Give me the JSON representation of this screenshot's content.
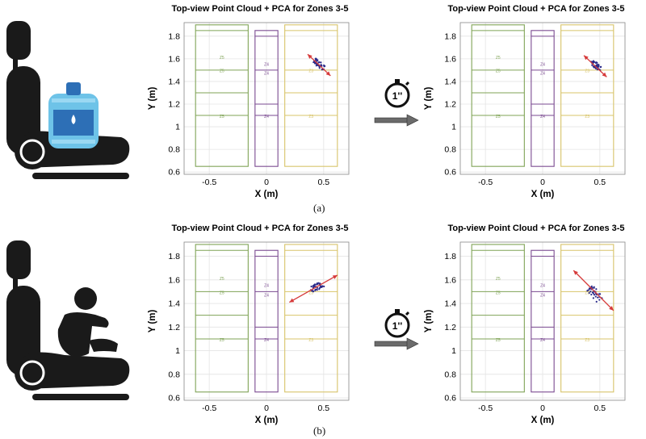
{
  "figure": {
    "caption_a": "(a)",
    "caption_b": "(b)",
    "timer_label": "1''"
  },
  "colors": {
    "zone5": "#7fa356",
    "zone4": "#7a4a91",
    "zone3": "#d8c46a",
    "points": "#2a2a8a",
    "pca_arrow": "#d63a3a",
    "seat": "#1a1a1a",
    "bottle": "#6ec3e8",
    "timer_arrow": "#6b6b6b"
  },
  "icons": {
    "seat_a": "car-seat-with-water-bottle-icon",
    "seat_b": "car-seat-with-child-icon",
    "timer": "stopwatch-icon"
  },
  "chart_data": [
    {
      "panel": "a-left",
      "type": "scatter",
      "title": "Top-view Point Cloud + PCA for Zones 3-5",
      "xlabel": "X (m)",
      "ylabel": "Y (m)",
      "xlim": [
        -0.72,
        0.72
      ],
      "ylim": [
        0.58,
        1.92
      ],
      "xticks": [
        -0.5,
        0,
        0.5
      ],
      "xtick_labels": [
        "-0.5",
        "0",
        "0.5"
      ],
      "yticks": [
        0.6,
        0.8,
        1.0,
        1.2,
        1.4,
        1.6,
        1.8
      ],
      "ytick_labels": [
        "0.6",
        "0.8",
        "1",
        "1.2",
        "1.4",
        "1.6",
        "1.8"
      ],
      "grid": true,
      "zones": [
        {
          "name": "Z5",
          "x": [
            -0.62,
            -0.16
          ],
          "y": [
            0.65,
            1.9
          ],
          "dividers": [
            1.85,
            1.5,
            1.3,
            1.1
          ],
          "labels": [
            {
              "text": "Z5",
              "x": -0.39,
              "y": 1.6
            },
            {
              "text": "Z5",
              "x": -0.39,
              "y": 1.48
            },
            {
              "text": "Z5",
              "x": -0.39,
              "y": 1.08
            }
          ]
        },
        {
          "name": "Z4",
          "x": [
            -0.1,
            0.1
          ],
          "y": [
            0.65,
            1.85
          ],
          "dividers": [
            1.8,
            1.5,
            1.2,
            1.1
          ],
          "labels": [
            {
              "text": "Z4",
              "x": 0.0,
              "y": 1.54
            },
            {
              "text": "Z4",
              "x": 0.0,
              "y": 1.46
            },
            {
              "text": "Z4",
              "x": 0.0,
              "y": 1.08
            }
          ]
        },
        {
          "name": "Z3",
          "x": [
            0.16,
            0.62
          ],
          "y": [
            0.65,
            1.9
          ],
          "dividers": [
            1.85,
            1.5,
            1.3,
            1.1
          ],
          "labels": [
            {
              "text": "Z3",
              "x": 0.39,
              "y": 1.48
            },
            {
              "text": "Z3",
              "x": 0.39,
              "y": 1.08
            }
          ]
        }
      ],
      "cluster": {
        "center": [
          0.46,
          1.55
        ],
        "angle": -40,
        "spread": [
          0.06,
          0.025
        ]
      },
      "pca_arrow": {
        "from": [
          0.36,
          1.64
        ],
        "to": [
          0.56,
          1.45
        ]
      }
    },
    {
      "panel": "a-right",
      "type": "scatter",
      "title": "Top-view Point Cloud + PCA for Zones 3-5",
      "xlabel": "X (m)",
      "ylabel": "Y (m)",
      "xlim": [
        -0.72,
        0.72
      ],
      "ylim": [
        0.58,
        1.92
      ],
      "xticks": [
        -0.5,
        0,
        0.5
      ],
      "xtick_labels": [
        "-0.5",
        "0",
        "0.5"
      ],
      "yticks": [
        0.6,
        0.8,
        1.0,
        1.2,
        1.4,
        1.6,
        1.8
      ],
      "ytick_labels": [
        "0.6",
        "0.8",
        "1",
        "1.2",
        "1.4",
        "1.6",
        "1.8"
      ],
      "grid": true,
      "zones": [
        {
          "name": "Z5",
          "x": [
            -0.62,
            -0.16
          ],
          "y": [
            0.65,
            1.9
          ],
          "dividers": [
            1.85,
            1.5,
            1.3,
            1.1
          ],
          "labels": [
            {
              "text": "Z5",
              "x": -0.39,
              "y": 1.6
            },
            {
              "text": "Z5",
              "x": -0.39,
              "y": 1.48
            },
            {
              "text": "Z5",
              "x": -0.39,
              "y": 1.08
            }
          ]
        },
        {
          "name": "Z4",
          "x": [
            -0.1,
            0.1
          ],
          "y": [
            0.65,
            1.85
          ],
          "dividers": [
            1.8,
            1.5,
            1.2,
            1.1
          ],
          "labels": [
            {
              "text": "Z4",
              "x": 0.0,
              "y": 1.54
            },
            {
              "text": "Z4",
              "x": 0.0,
              "y": 1.46
            },
            {
              "text": "Z4",
              "x": 0.0,
              "y": 1.08
            }
          ]
        },
        {
          "name": "Z3",
          "x": [
            0.16,
            0.62
          ],
          "y": [
            0.65,
            1.9
          ],
          "dividers": [
            1.85,
            1.5,
            1.3,
            1.1
          ],
          "labels": [
            {
              "text": "Z3",
              "x": 0.39,
              "y": 1.48
            },
            {
              "text": "Z3",
              "x": 0.39,
              "y": 1.08
            }
          ]
        }
      ],
      "cluster": {
        "center": [
          0.47,
          1.54
        ],
        "angle": -38,
        "spread": [
          0.06,
          0.025
        ]
      },
      "pca_arrow": {
        "from": [
          0.36,
          1.63
        ],
        "to": [
          0.56,
          1.44
        ]
      }
    },
    {
      "panel": "b-left",
      "type": "scatter",
      "title": "Top-view Point Cloud + PCA for Zones 3-5",
      "xlabel": "X (m)",
      "ylabel": "Y (m)",
      "xlim": [
        -0.72,
        0.72
      ],
      "ylim": [
        0.58,
        1.92
      ],
      "xticks": [
        -0.5,
        0,
        0.5
      ],
      "xtick_labels": [
        "-0.5",
        "0",
        "0.5"
      ],
      "yticks": [
        0.6,
        0.8,
        1.0,
        1.2,
        1.4,
        1.6,
        1.8
      ],
      "ytick_labels": [
        "0.6",
        "0.8",
        "1",
        "1.2",
        "1.4",
        "1.6",
        "1.8"
      ],
      "grid": true,
      "zones": [
        {
          "name": "Z5",
          "x": [
            -0.62,
            -0.16
          ],
          "y": [
            0.65,
            1.9
          ],
          "dividers": [
            1.85,
            1.5,
            1.3,
            1.1
          ],
          "labels": [
            {
              "text": "Z5",
              "x": -0.39,
              "y": 1.6
            },
            {
              "text": "Z5",
              "x": -0.39,
              "y": 1.48
            },
            {
              "text": "Z5",
              "x": -0.39,
              "y": 1.08
            }
          ]
        },
        {
          "name": "Z4",
          "x": [
            -0.1,
            0.1
          ],
          "y": [
            0.65,
            1.85
          ],
          "dividers": [
            1.8,
            1.5,
            1.2,
            1.1
          ],
          "labels": [
            {
              "text": "Z4",
              "x": 0.0,
              "y": 1.54
            },
            {
              "text": "Z4",
              "x": 0.0,
              "y": 1.46
            },
            {
              "text": "Z4",
              "x": 0.0,
              "y": 1.08
            }
          ]
        },
        {
          "name": "Z3",
          "x": [
            0.16,
            0.62
          ],
          "y": [
            0.65,
            1.9
          ],
          "dividers": [
            1.85,
            1.5,
            1.3,
            1.1
          ],
          "labels": [
            {
              "text": "Z3",
              "x": 0.39,
              "y": 1.48
            },
            {
              "text": "Z3",
              "x": 0.39,
              "y": 1.08
            }
          ]
        }
      ],
      "cluster": {
        "center": [
          0.44,
          1.54
        ],
        "angle": 30,
        "spread": [
          0.06,
          0.03
        ]
      },
      "pca_arrow": {
        "from": [
          0.2,
          1.41
        ],
        "to": [
          0.62,
          1.64
        ]
      }
    },
    {
      "panel": "b-right",
      "type": "scatter",
      "title": "Top-view Point Cloud + PCA for Zones 3-5",
      "xlabel": "X (m)",
      "ylabel": "Y (m)",
      "xlim": [
        -0.72,
        0.72
      ],
      "ylim": [
        0.58,
        1.92
      ],
      "xticks": [
        -0.5,
        0,
        0.5
      ],
      "xtick_labels": [
        "-0.5",
        "0",
        "0.5"
      ],
      "yticks": [
        0.6,
        0.8,
        1.0,
        1.2,
        1.4,
        1.6,
        1.8
      ],
      "ytick_labels": [
        "0.6",
        "0.8",
        "1",
        "1.2",
        "1.4",
        "1.6",
        "1.8"
      ],
      "grid": true,
      "zones": [
        {
          "name": "Z5",
          "x": [
            -0.62,
            -0.16
          ],
          "y": [
            0.65,
            1.9
          ],
          "dividers": [
            1.85,
            1.5,
            1.3,
            1.1
          ],
          "labels": [
            {
              "text": "Z5",
              "x": -0.39,
              "y": 1.6
            },
            {
              "text": "Z5",
              "x": -0.39,
              "y": 1.48
            },
            {
              "text": "Z5",
              "x": -0.39,
              "y": 1.08
            }
          ]
        },
        {
          "name": "Z4",
          "x": [
            -0.1,
            0.1
          ],
          "y": [
            0.65,
            1.85
          ],
          "dividers": [
            1.8,
            1.5,
            1.2,
            1.1
          ],
          "labels": [
            {
              "text": "Z4",
              "x": 0.0,
              "y": 1.54
            },
            {
              "text": "Z4",
              "x": 0.0,
              "y": 1.46
            },
            {
              "text": "Z4",
              "x": 0.0,
              "y": 1.08
            }
          ]
        },
        {
          "name": "Z3",
          "x": [
            0.16,
            0.62
          ],
          "y": [
            0.65,
            1.9
          ],
          "dividers": [
            1.85,
            1.5,
            1.3,
            1.1
          ],
          "labels": [
            {
              "text": "Z3",
              "x": 0.39,
              "y": 1.48
            },
            {
              "text": "Z3",
              "x": 0.39,
              "y": 1.08
            }
          ]
        }
      ],
      "cluster": {
        "center": [
          0.46,
          1.48
        ],
        "angle": -50,
        "spread": [
          0.07,
          0.035
        ]
      },
      "pca_arrow": {
        "from": [
          0.27,
          1.68
        ],
        "to": [
          0.62,
          1.34
        ]
      }
    }
  ]
}
